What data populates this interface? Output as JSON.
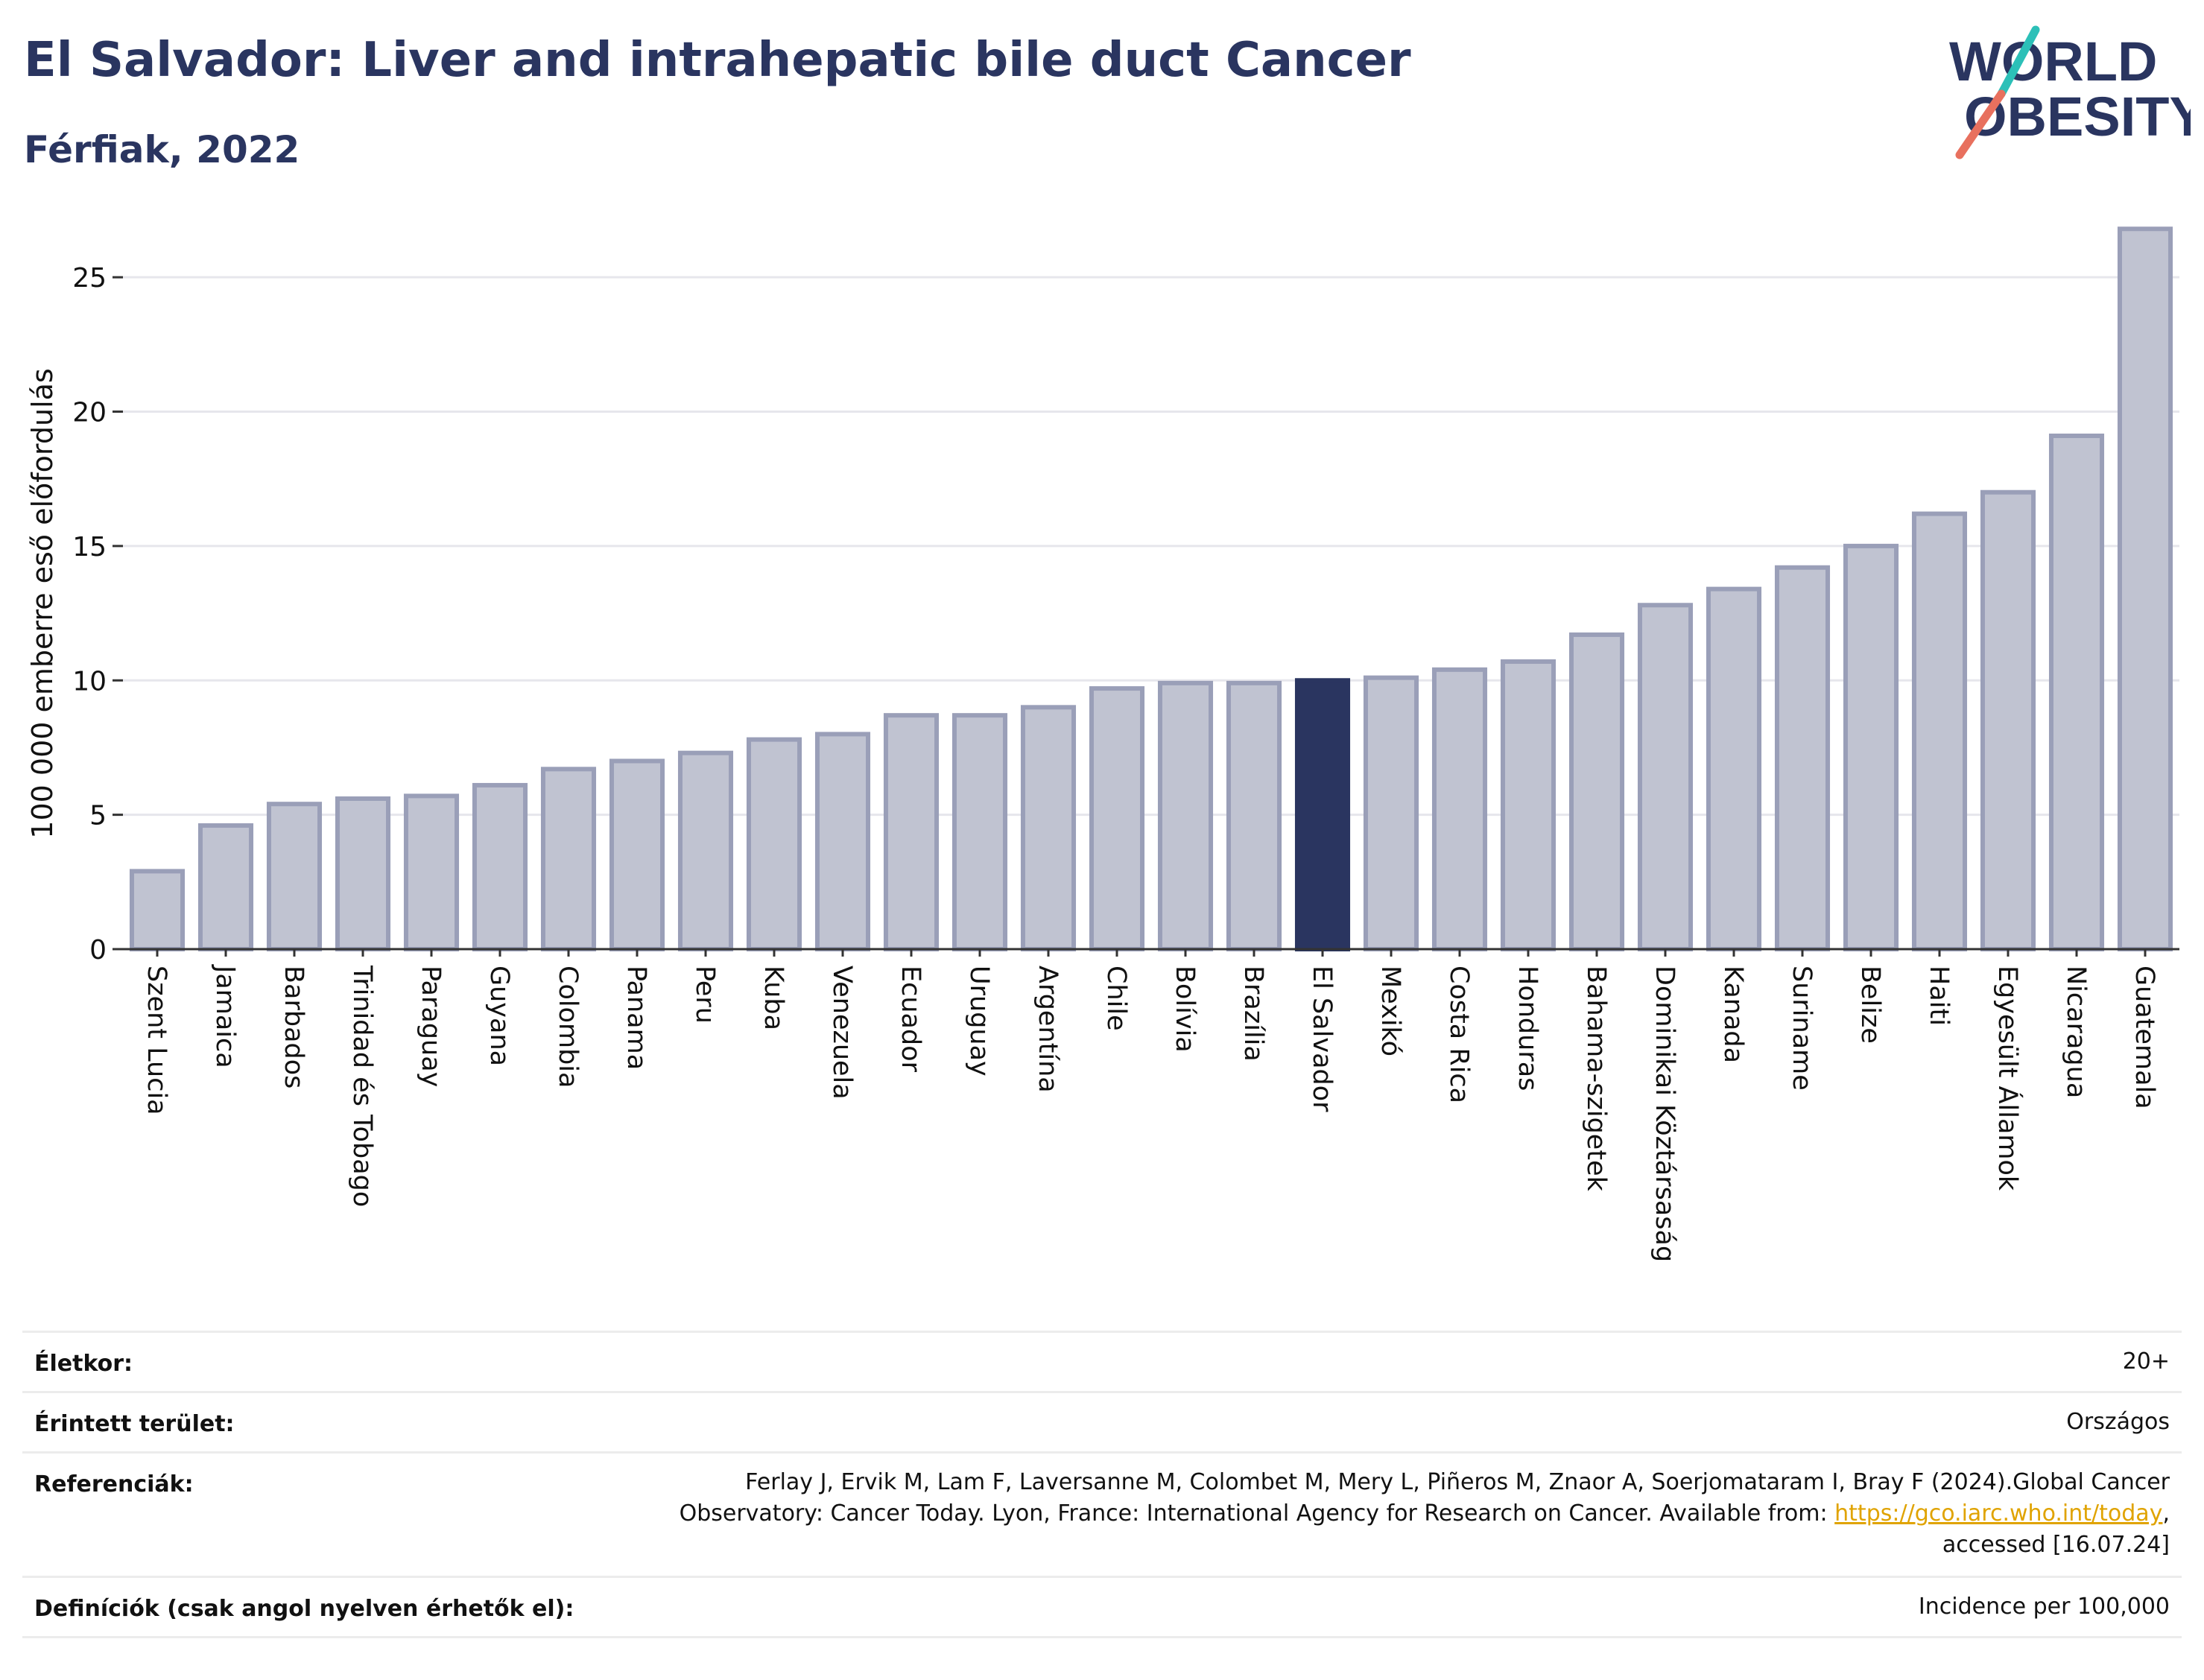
{
  "header": {
    "title": "El Salvador: Liver and intrahepatic bile duct Cancer",
    "subtitle": "Férfiak, 2022"
  },
  "logo": {
    "line1": "WORLD",
    "line2": "OBESITY",
    "name": "world-obesity-logo"
  },
  "colors": {
    "title": "#2a3560",
    "bar": "#c0c3d1",
    "bar_stroke": "#9a9fb8",
    "highlight": "#2a3560",
    "grid": "#e6e6ec",
    "link": "#e0a300"
  },
  "chart_data": {
    "type": "bar",
    "ylabel": "100 000 emberre eső előfordulás",
    "xlabel": "",
    "ylim": [
      0,
      27
    ],
    "yticks": [
      0,
      5,
      10,
      15,
      20,
      25
    ],
    "grid": true,
    "highlight_category": "El Salvador",
    "categories": [
      "Szent Lucia",
      "Jamaica",
      "Barbados",
      "Trinidad és Tobago",
      "Paraguay",
      "Guyana",
      "Colombia",
      "Panama",
      "Peru",
      "Kuba",
      "Venezuela",
      "Ecuador",
      "Uruguay",
      "Argentína",
      "Chile",
      "Bolívia",
      "Brazília",
      "El Salvador",
      "Mexikó",
      "Costa Rica",
      "Honduras",
      "Bahama-szigetek",
      "Dominikai Köztársaság",
      "Kanada",
      "Suriname",
      "Belize",
      "Haiti",
      "Egyesült Államok",
      "Nicaragua",
      "Guatemala"
    ],
    "values": [
      2.9,
      4.6,
      5.4,
      5.6,
      5.7,
      6.1,
      6.7,
      7.0,
      7.3,
      7.8,
      8.0,
      8.7,
      8.7,
      9.0,
      9.7,
      9.9,
      9.9,
      10.0,
      10.1,
      10.4,
      10.7,
      11.7,
      12.8,
      13.4,
      14.2,
      15.0,
      16.2,
      17.0,
      19.1,
      26.8
    ]
  },
  "meta": {
    "rows": [
      {
        "label": "Életkor:",
        "value": "20+"
      },
      {
        "label": "Érintett terület:",
        "value": "Országos"
      },
      {
        "label": "Referenciák:",
        "value_line1": "Ferlay J, Ervik M, Lam F, Laversanne M, Colombet M, Mery L, Piñeros M, Znaor A, Soerjomataram I, Bray F (2024).Global Cancer",
        "value_line2_pre": "Observatory: Cancer Today. Lyon, France: International Agency for Research on Cancer. Available from: ",
        "value_link": "https://gco.iarc.who.int/today",
        "value_line2_post": ",",
        "value_line3": "accessed [16.07.24]"
      },
      {
        "label": "Definíciók (csak angol nyelven érhetők el):",
        "value": "Incidence per 100,000"
      }
    ]
  }
}
